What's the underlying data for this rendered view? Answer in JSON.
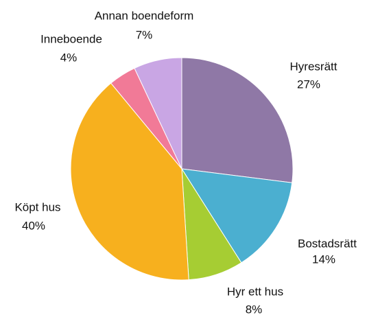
{
  "chart_data": {
    "type": "pie",
    "categories": [
      "Hyresrätt",
      "Bostadsrätt",
      "Hyr ett hus",
      "Köpt hus",
      "Inneboende",
      "Annan boendeform"
    ],
    "values": [
      27,
      14,
      8,
      40,
      4,
      7
    ],
    "value_labels": [
      "27%",
      "14%",
      "8%",
      "40%",
      "4%",
      "7%"
    ],
    "colors": [
      "#8f78a6",
      "#4bafd0",
      "#a6cd33",
      "#f7b01e",
      "#f17a97",
      "#c9a6e4"
    ]
  }
}
